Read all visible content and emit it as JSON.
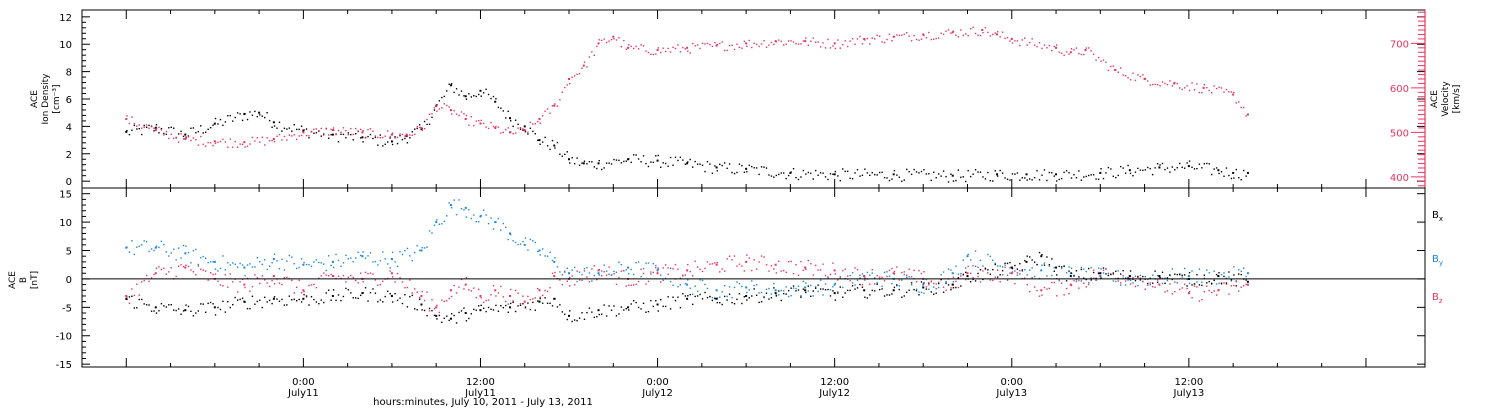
{
  "colors": {
    "black": "#000000",
    "red": "#e8345f",
    "blue": "#1a86e0",
    "frame": "#000000"
  },
  "chart_data": [
    {
      "type": "scatter",
      "panel": "top",
      "ylabel_lines": [
        "ACE",
        "Ion Density",
        "[cm⁻³]"
      ],
      "ylim": [
        -0.5,
        12.5
      ],
      "yticks": [
        "0",
        "2",
        "4",
        "6",
        "8",
        "10",
        "12"
      ],
      "yticks_values": [
        0,
        2,
        4,
        6,
        8,
        10,
        12
      ],
      "y2label_lines": [
        "ACE",
        "Velocity",
        "[km/s]"
      ],
      "y2lim": [
        375,
        775
      ],
      "y2ticks": [
        "400",
        "500",
        "600",
        "700"
      ],
      "y2ticks_values": [
        400,
        500,
        600,
        700
      ],
      "series": [
        {
          "color": "#000000",
          "axis": "left",
          "points": [
            [
              -12,
              3.6
            ],
            [
              -10,
              3.9
            ],
            [
              -8,
              3.4
            ],
            [
              -6,
              4.2
            ],
            [
              -4,
              4.9
            ],
            [
              -3,
              5.0
            ],
            [
              -2,
              4.3
            ],
            [
              0,
              3.7
            ],
            [
              2,
              3.4
            ],
            [
              4,
              3.2
            ],
            [
              6,
              2.9
            ],
            [
              7,
              3.3
            ],
            [
              8,
              3.8
            ],
            [
              9,
              5.5
            ],
            [
              10,
              7.0
            ],
            [
              11,
              6.2
            ],
            [
              12,
              6.6
            ],
            [
              13,
              5.8
            ],
            [
              14,
              4.6
            ],
            [
              15,
              4.0
            ],
            [
              16,
              3.0
            ],
            [
              17,
              2.6
            ],
            [
              18,
              1.6
            ],
            [
              19,
              1.3
            ],
            [
              20,
              1.3
            ],
            [
              22,
              1.6
            ],
            [
              24,
              1.5
            ],
            [
              26,
              1.3
            ],
            [
              28,
              1.0
            ],
            [
              30,
              0.9
            ],
            [
              33,
              0.6
            ],
            [
              36,
              0.5
            ],
            [
              40,
              0.5
            ],
            [
              44,
              0.4
            ],
            [
              47,
              0.5
            ],
            [
              49,
              0.5
            ],
            [
              51,
              0.5
            ],
            [
              54,
              0.6
            ],
            [
              56,
              0.8
            ],
            [
              58,
              1.0
            ],
            [
              60,
              1.1
            ],
            [
              62,
              0.8
            ],
            [
              63,
              0.6
            ],
            [
              64,
              0.6
            ]
          ]
        },
        {
          "color": "#e8345f",
          "axis": "right",
          "points": [
            [
              -12,
              530
            ],
            [
              -10,
              505
            ],
            [
              -8,
              485
            ],
            [
              -6,
              480
            ],
            [
              -4,
              478
            ],
            [
              -2,
              485
            ],
            [
              0,
              500
            ],
            [
              2,
              505
            ],
            [
              4,
              500
            ],
            [
              6,
              495
            ],
            [
              7,
              495
            ],
            [
              8,
              510
            ],
            [
              9,
              560
            ],
            [
              10,
              550
            ],
            [
              11,
              530
            ],
            [
              12,
              520
            ],
            [
              13,
              510
            ],
            [
              14,
              500
            ],
            [
              15,
              505
            ],
            [
              16,
              530
            ],
            [
              17,
              560
            ],
            [
              18,
              620
            ],
            [
              19,
              650
            ],
            [
              20,
              700
            ],
            [
              21,
              715
            ],
            [
              22,
              690
            ],
            [
              24,
              685
            ],
            [
              26,
              690
            ],
            [
              28,
              695
            ],
            [
              30,
              700
            ],
            [
              32,
              705
            ],
            [
              34,
              705
            ],
            [
              36,
              700
            ],
            [
              38,
              710
            ],
            [
              40,
              715
            ],
            [
              42,
              720
            ],
            [
              44,
              725
            ],
            [
              46,
              730
            ],
            [
              47,
              720
            ],
            [
              48,
              710
            ],
            [
              51,
              690
            ],
            [
              52,
              680
            ],
            [
              53,
              685
            ],
            [
              55,
              640
            ],
            [
              57,
              620
            ],
            [
              59,
              610
            ],
            [
              61,
              600
            ],
            [
              63,
              585
            ],
            [
              64,
              540
            ]
          ]
        }
      ]
    },
    {
      "type": "scatter",
      "panel": "bottom",
      "ylabel_lines": [
        "ACE",
        "B",
        "[nT]"
      ],
      "ylim": [
        -15.5,
        16
      ],
      "yticks": [
        "-15",
        "-10",
        "-5",
        "0",
        "5",
        "10",
        "15"
      ],
      "yticks_values": [
        -15,
        -10,
        -5,
        0,
        5,
        10,
        15
      ],
      "zero_line": true,
      "legend_placement": "right",
      "series": [
        {
          "name": "Bx",
          "color": "#000000",
          "points": [
            [
              -12,
              -3.5
            ],
            [
              -10,
              -5.0
            ],
            [
              -8,
              -5.5
            ],
            [
              -6,
              -5.0
            ],
            [
              -4,
              -4.0
            ],
            [
              -2,
              -3.5
            ],
            [
              0,
              -3.5
            ],
            [
              2,
              -3.0
            ],
            [
              4,
              -2.5
            ],
            [
              6,
              -3.0
            ],
            [
              8,
              -4.5
            ],
            [
              9,
              -6.5
            ],
            [
              10,
              -7.0
            ],
            [
              11,
              -6.0
            ],
            [
              12,
              -5.5
            ],
            [
              14,
              -5.0
            ],
            [
              16,
              -4.0
            ],
            [
              17,
              -3.5
            ],
            [
              18,
              -6.5
            ],
            [
              20,
              -5.5
            ],
            [
              22,
              -5.0
            ],
            [
              24,
              -4.5
            ],
            [
              26,
              -3.5
            ],
            [
              28,
              -3.5
            ],
            [
              30,
              -3.0
            ],
            [
              32,
              -2.5
            ],
            [
              34,
              -2.0
            ],
            [
              36,
              -2.5
            ],
            [
              38,
              -2.0
            ],
            [
              40,
              -2.0
            ],
            [
              42,
              -1.5
            ],
            [
              44,
              -1.0
            ],
            [
              45,
              0.5
            ],
            [
              48,
              2.0
            ],
            [
              49,
              3.0
            ],
            [
              50,
              4.0
            ],
            [
              51,
              2.0
            ],
            [
              52,
              0.5
            ],
            [
              54,
              1.0
            ],
            [
              56,
              0.5
            ],
            [
              58,
              0.5
            ],
            [
              60,
              0.0
            ],
            [
              62,
              0.5
            ],
            [
              64,
              -0.5
            ]
          ]
        },
        {
          "name": "By",
          "color": "#1a86e0",
          "points": [
            [
              -12,
              5.5
            ],
            [
              -10,
              5.5
            ],
            [
              -8,
              4.5
            ],
            [
              -6,
              3.0
            ],
            [
              -4,
              2.0
            ],
            [
              -2,
              3.5
            ],
            [
              0,
              2.5
            ],
            [
              2,
              3.0
            ],
            [
              4,
              4.0
            ],
            [
              6,
              3.5
            ],
            [
              8,
              5.0
            ],
            [
              9,
              10.0
            ],
            [
              10,
              13.0
            ],
            [
              11,
              12.5
            ],
            [
              12,
              11.0
            ],
            [
              13,
              10.0
            ],
            [
              14,
              8.0
            ],
            [
              15,
              6.0
            ],
            [
              16,
              5.0
            ],
            [
              17,
              3.0
            ],
            [
              18,
              1.0
            ],
            [
              20,
              1.0
            ],
            [
              22,
              2.0
            ],
            [
              24,
              1.5
            ],
            [
              26,
              -1.0
            ],
            [
              28,
              -2.0
            ],
            [
              30,
              -1.5
            ],
            [
              32,
              -2.0
            ],
            [
              34,
              -1.5
            ],
            [
              36,
              -1.0
            ],
            [
              38,
              0.5
            ],
            [
              40,
              0.0
            ],
            [
              42,
              -1.0
            ],
            [
              44,
              1.0
            ],
            [
              45,
              4.0
            ],
            [
              48,
              2.0
            ],
            [
              50,
              1.5
            ],
            [
              52,
              1.0
            ],
            [
              54,
              0.5
            ],
            [
              56,
              0.0
            ],
            [
              58,
              0.5
            ],
            [
              60,
              0.5
            ],
            [
              62,
              0.5
            ],
            [
              64,
              1.0
            ]
          ]
        },
        {
          "name": "Bz",
          "color": "#e8345f",
          "points": [
            [
              -12,
              -3.0
            ],
            [
              -10,
              1.0
            ],
            [
              -8,
              2.0
            ],
            [
              -6,
              0.0
            ],
            [
              -4,
              -1.0
            ],
            [
              -2,
              0.5
            ],
            [
              0,
              -2.0
            ],
            [
              2,
              0.5
            ],
            [
              4,
              0.0
            ],
            [
              6,
              1.0
            ],
            [
              8,
              -3.0
            ],
            [
              9,
              -5.0
            ],
            [
              10,
              -2.0
            ],
            [
              11,
              -1.0
            ],
            [
              12,
              -3.0
            ],
            [
              13,
              -2.0
            ],
            [
              14,
              -3.0
            ],
            [
              15,
              -4.0
            ],
            [
              16,
              -2.0
            ],
            [
              17,
              0.5
            ],
            [
              18,
              0.0
            ],
            [
              20,
              1.5
            ],
            [
              22,
              0.0
            ],
            [
              24,
              1.0
            ],
            [
              26,
              1.5
            ],
            [
              28,
              2.5
            ],
            [
              30,
              3.0
            ],
            [
              32,
              2.5
            ],
            [
              34,
              2.0
            ],
            [
              36,
              1.5
            ],
            [
              38,
              0.5
            ],
            [
              40,
              1.0
            ],
            [
              42,
              0.0
            ],
            [
              44,
              -1.0
            ],
            [
              45,
              1.0
            ],
            [
              48,
              1.0
            ],
            [
              50,
              -2.0
            ],
            [
              52,
              -1.0
            ],
            [
              54,
              1.0
            ],
            [
              56,
              0.5
            ],
            [
              58,
              -1.0
            ],
            [
              60,
              -2.5
            ],
            [
              62,
              -2.0
            ],
            [
              64,
              -1.0
            ]
          ]
        }
      ]
    }
  ],
  "xaxis": {
    "xlim": [
      -15,
      76
    ],
    "ticks": [
      {
        "value": 0,
        "time": "0:00",
        "date": "July11"
      },
      {
        "value": 12,
        "time": "12:00",
        "date": "July11"
      },
      {
        "value": 24,
        "time": "0:00",
        "date": "July12"
      },
      {
        "value": 36,
        "time": "12:00",
        "date": "July12"
      },
      {
        "value": 48,
        "time": "0:00",
        "date": "July13"
      },
      {
        "value": 60,
        "time": "12:00",
        "date": "July13"
      }
    ],
    "xlabel": "hours:minutes, July 10, 2011 - July 13, 2011"
  },
  "legend": [
    {
      "base": "B",
      "sub": "x",
      "color": "#000000"
    },
    {
      "base": "B",
      "sub": "y",
      "color": "#1a86e0"
    },
    {
      "base": "B",
      "sub": "z",
      "color": "#e8345f"
    }
  ]
}
